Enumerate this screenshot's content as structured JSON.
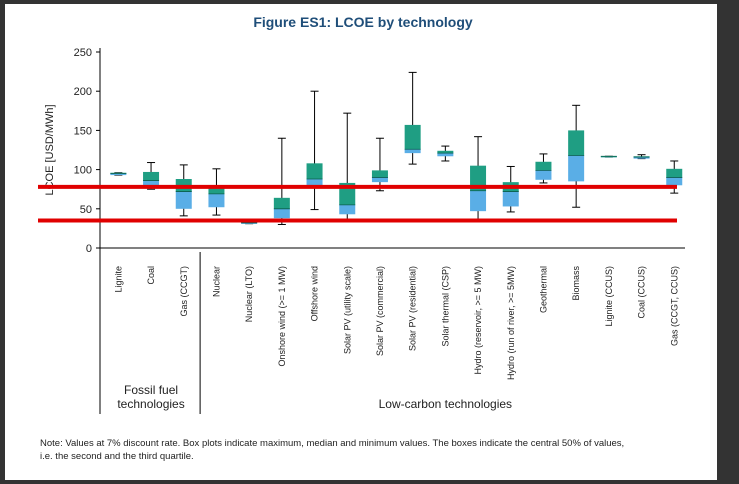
{
  "chart_data": {
    "type": "box",
    "title": "Figure ES1: LCOE by technology",
    "ylabel": "LCOE [USD/MWh]",
    "ylim": [
      0,
      250
    ],
    "yticks": [
      0,
      50,
      100,
      150,
      200,
      250
    ],
    "grid": false,
    "colors": {
      "lower_box": "#5aaee6",
      "upper_box": "#1f9e83",
      "whisker": "#000000",
      "reference_line": "#e00000",
      "title": "#1f4e79"
    },
    "reference_lines": [
      78,
      35
    ],
    "categories": [
      {
        "label": "Lignite",
        "min": 93,
        "q1": 93,
        "median": 95,
        "q3": 96,
        "max": 96
      },
      {
        "label": "Coal",
        "min": 75,
        "q1": 78,
        "median": 86,
        "q3": 97,
        "max": 109
      },
      {
        "label": "Gas (CCGT)",
        "min": 41,
        "q1": 50,
        "median": 72,
        "q3": 88,
        "max": 106
      },
      {
        "label": "Nuclear",
        "min": 42,
        "q1": 52,
        "median": 69,
        "q3": 76,
        "max": 101
      },
      {
        "label": "Nuclear (LTO)",
        "min": 31,
        "q1": 31,
        "median": 32,
        "q3": 33,
        "max": 33
      },
      {
        "label": "Onshore wind (>= 1 MW)",
        "min": 30,
        "q1": 38,
        "median": 50,
        "q3": 64,
        "max": 140
      },
      {
        "label": "Offshore wind",
        "min": 49,
        "q1": 80,
        "median": 88,
        "q3": 108,
        "max": 200
      },
      {
        "label": "Solar PV (utility scale)",
        "min": 37,
        "q1": 43,
        "median": 55,
        "q3": 83,
        "max": 172
      },
      {
        "label": "Solar PV (commercial)",
        "min": 73,
        "q1": 84,
        "median": 90,
        "q3": 99,
        "max": 140
      },
      {
        "label": "Solar PV (residential)",
        "min": 107,
        "q1": 121,
        "median": 126,
        "q3": 157,
        "max": 224
      },
      {
        "label": "Solar thermal (CSP)",
        "min": 111,
        "q1": 117,
        "median": 121,
        "q3": 124,
        "max": 130
      },
      {
        "label": "Hydro (reservoir, >= 5 MW)",
        "min": 36,
        "q1": 47,
        "median": 73,
        "q3": 105,
        "max": 142
      },
      {
        "label": "Hydro (run of river, >= 5MW)",
        "min": 46,
        "q1": 53,
        "median": 72,
        "q3": 84,
        "max": 104
      },
      {
        "label": "Geothermal",
        "min": 83,
        "q1": 87,
        "median": 99,
        "q3": 110,
        "max": 120
      },
      {
        "label": "Biomass",
        "min": 52,
        "q1": 85,
        "median": 118,
        "q3": 150,
        "max": 182
      },
      {
        "label": "Lignite (CCUS)",
        "min": 116,
        "q1": 116,
        "median": 117,
        "q3": 117,
        "max": 117
      },
      {
        "label": "Coal (CCUS)",
        "min": 114,
        "q1": 114,
        "median": 116,
        "q3": 117,
        "max": 119
      },
      {
        "label": "Gas (CCGT, CCUS)",
        "min": 70,
        "q1": 80,
        "median": 90,
        "q3": 101,
        "max": 111
      }
    ],
    "groups": [
      {
        "label_lines": [
          "Fossil fuel",
          "technologies"
        ],
        "first": 0,
        "last": 2
      },
      {
        "label_lines": [
          "Low-carbon technologies"
        ],
        "first": 3,
        "last": 17
      }
    ]
  },
  "note_lines": [
    "Note: Values at 7% discount rate. Box plots indicate maximum, median and minimum values. The boxes indicate the central 50% of values,",
    "i.e. the second and the third quartile."
  ]
}
